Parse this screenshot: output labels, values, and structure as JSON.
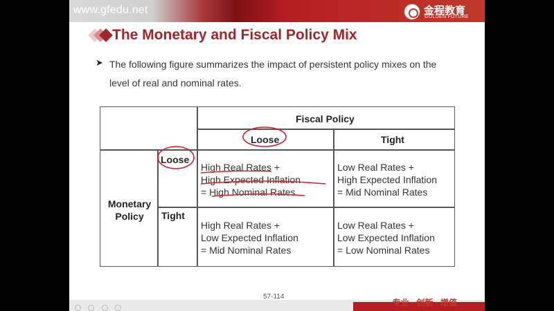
{
  "header": {
    "url": "www.gfedu.net",
    "logo_cn": "金程教育",
    "logo_en": "GOLDEN FUTURE"
  },
  "slide": {
    "title": "The Monetary and Fiscal Policy Mix",
    "bullet": "The following figure summarizes the impact of persistent policy mixes on the level of real and nominal rates."
  },
  "table": {
    "fiscal_header": "Fiscal Policy",
    "monetary_header": "Monetary Policy",
    "fiscal_loose": "Loose",
    "fiscal_tight": "Tight",
    "monetary_loose": "Loose",
    "monetary_tight": "Tight",
    "loose_loose": [
      "High Real Rates +",
      "High Expected Inflation",
      "=  High Nominal Rates"
    ],
    "loose_tight": [
      "Low Real Rates +",
      "High Expected Inflation",
      "= Mid Nominal Rates"
    ],
    "tight_loose": [
      "High Real Rates +",
      "Low Expected Inflation",
      "= Mid Nominal Rates"
    ],
    "tight_tight": [
      "Low Real Rates +",
      "Low Expected Inflation",
      "= Low Nominal Rates"
    ]
  },
  "footer": {
    "page": "57-114",
    "slogan": "专业 · 创新 · 增值"
  },
  "colors": {
    "brand_red": "#b51d21",
    "title_red": "#a0262b",
    "ink_red": "#d0202a"
  }
}
